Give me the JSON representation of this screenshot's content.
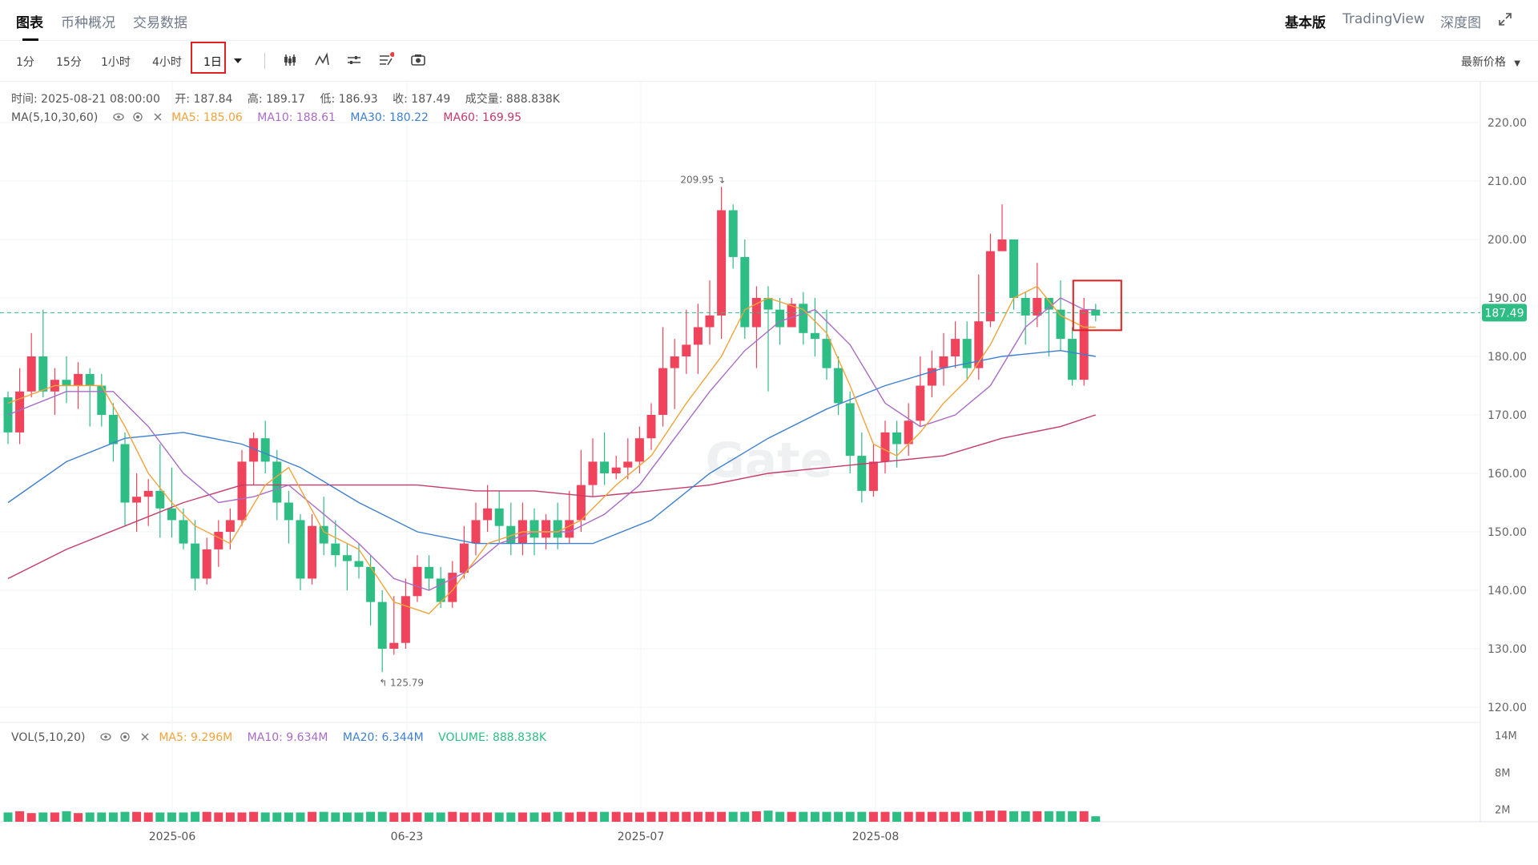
{
  "tabs": {
    "chart": "图表",
    "overview": "币种概况",
    "trading": "交易数据"
  },
  "right_tabs": {
    "basic": "基本版",
    "tradingview": "TradingView",
    "depth": "深度图"
  },
  "intervals": [
    "1分",
    "15分",
    "1小时",
    "4小时",
    "1日"
  ],
  "selected_interval": "1日",
  "price_mode": "最新价格",
  "info": {
    "time": "时间: 2025-08-21 08:00:00",
    "open": "开: 187.84",
    "high": "高: 189.17",
    "low": "低: 186.93",
    "close": "收: 187.49",
    "volume": "成交量: 888.838K"
  },
  "ma_legend": {
    "title": "MA(5,10,30,60)",
    "ma5": "MA5: 185.06",
    "ma10": "MA10: 188.61",
    "ma30": "MA30: 180.22",
    "ma60": "MA60: 169.95"
  },
  "vol_legend": {
    "title": "VOL(5,10,20)",
    "ma5": "MA5: 9.296M",
    "ma10": "MA10: 9.634M",
    "ma20": "MA20: 6.344M",
    "volume": "VOLUME: 888.838K"
  },
  "watermark": "Gate",
  "colors": {
    "up": "#f0435c",
    "down": "#2ebd85",
    "ma5": "#f2a33a",
    "ma10": "#a96cc6",
    "ma30": "#3d7fd1",
    "ma60": "#c73a6a",
    "last_price_bg": "#2ebd85"
  },
  "chart_data": {
    "type": "candlestick",
    "x_labels": [
      "2025-06",
      "06-23",
      "2025-07",
      "2025-08"
    ],
    "y_ticks": [
      "220.00",
      "210.00",
      "200.00",
      "190.00",
      "180.00",
      "170.00",
      "160.00",
      "150.00",
      "140.00",
      "130.00",
      "120.00"
    ],
    "ylim": [
      118,
      227
    ],
    "vol_ticks": [
      "14M",
      "8M",
      "2M"
    ],
    "last_price": "187.49",
    "high_mark": "209.95",
    "low_mark": "125.79",
    "candles": [
      [
        173,
        167,
        174,
        165
      ],
      [
        167,
        174,
        178,
        165
      ],
      [
        174,
        180,
        184,
        173
      ],
      [
        180,
        174,
        188,
        173
      ],
      [
        174,
        176,
        178,
        170
      ],
      [
        176,
        175,
        180,
        172
      ],
      [
        175,
        177,
        179,
        171
      ],
      [
        177,
        175,
        178,
        168
      ],
      [
        175,
        170,
        177,
        168
      ],
      [
        170,
        165,
        172,
        162
      ],
      [
        165,
        155,
        167,
        151
      ],
      [
        155,
        156,
        160,
        150
      ],
      [
        156,
        157,
        159,
        151
      ],
      [
        157,
        154,
        165,
        149
      ],
      [
        154,
        152,
        161,
        149
      ],
      [
        152,
        148,
        154,
        147
      ],
      [
        148,
        142,
        152,
        140
      ],
      [
        142,
        147,
        149,
        141
      ],
      [
        147,
        150,
        152,
        144
      ],
      [
        150,
        152,
        154,
        147
      ],
      [
        152,
        162,
        164,
        151
      ],
      [
        162,
        166,
        167,
        158
      ],
      [
        166,
        162,
        169,
        160
      ],
      [
        162,
        155,
        164,
        152
      ],
      [
        155,
        152,
        157,
        148
      ],
      [
        152,
        142,
        153,
        140
      ],
      [
        142,
        151,
        153,
        141
      ],
      [
        151,
        148,
        156,
        146
      ],
      [
        148,
        146,
        152,
        144
      ],
      [
        146,
        145,
        148,
        140
      ],
      [
        145,
        144,
        148,
        142
      ],
      [
        144,
        138,
        146,
        134
      ],
      [
        138,
        130,
        140,
        126
      ],
      [
        130,
        131,
        139,
        129
      ],
      [
        131,
        139,
        142,
        130
      ],
      [
        139,
        144,
        146,
        138
      ],
      [
        144,
        142,
        146,
        140
      ],
      [
        142,
        138,
        144,
        137
      ],
      [
        138,
        143,
        145,
        137
      ],
      [
        143,
        148,
        151,
        142
      ],
      [
        148,
        152,
        155,
        146
      ],
      [
        152,
        154,
        158,
        150
      ],
      [
        154,
        151,
        157,
        148
      ],
      [
        151,
        148,
        155,
        146
      ],
      [
        148,
        152,
        155,
        146
      ],
      [
        152,
        149,
        154,
        146
      ],
      [
        149,
        152,
        153,
        147
      ],
      [
        152,
        149,
        155,
        147
      ],
      [
        149,
        152,
        157,
        148
      ],
      [
        152,
        158,
        164,
        150
      ],
      [
        158,
        162,
        166,
        156
      ],
      [
        162,
        160,
        167,
        158
      ],
      [
        160,
        161,
        163,
        159
      ],
      [
        161,
        162,
        166,
        159
      ],
      [
        162,
        166,
        168,
        160
      ],
      [
        166,
        170,
        172,
        164
      ],
      [
        170,
        178,
        185,
        168
      ],
      [
        178,
        180,
        183,
        171
      ],
      [
        180,
        182,
        188,
        177
      ],
      [
        182,
        185,
        189,
        177
      ],
      [
        185,
        187,
        193,
        182
      ],
      [
        187,
        205,
        209,
        183
      ],
      [
        205,
        197,
        206,
        195
      ],
      [
        197,
        185,
        200,
        183
      ],
      [
        185,
        190,
        192,
        178
      ],
      [
        190,
        188,
        192,
        174
      ],
      [
        188,
        185,
        190,
        182
      ],
      [
        185,
        189,
        190,
        186
      ],
      [
        189,
        184,
        191,
        182
      ],
      [
        184,
        183,
        190,
        180
      ],
      [
        183,
        178,
        188,
        176
      ],
      [
        178,
        172,
        180,
        170
      ],
      [
        172,
        163,
        174,
        160
      ],
      [
        163,
        157,
        167,
        155
      ],
      [
        157,
        162,
        165,
        156
      ],
      [
        162,
        167,
        169,
        160
      ],
      [
        167,
        165,
        169,
        161
      ],
      [
        165,
        169,
        172,
        163
      ],
      [
        169,
        175,
        180,
        168
      ],
      [
        175,
        178,
        181,
        173
      ],
      [
        178,
        180,
        184,
        175
      ],
      [
        180,
        183,
        186,
        178
      ],
      [
        183,
        178,
        186,
        176
      ],
      [
        178,
        186,
        194,
        176
      ],
      [
        186,
        198,
        201,
        185
      ],
      [
        198,
        200,
        206,
        198
      ],
      [
        200,
        190,
        200,
        188
      ],
      [
        190,
        187,
        191,
        182
      ],
      [
        187,
        190,
        196,
        185
      ],
      [
        190,
        188,
        190,
        180
      ],
      [
        188,
        183,
        193,
        181
      ],
      [
        183,
        176,
        185,
        175
      ],
      [
        176,
        188,
        190,
        175
      ],
      [
        188,
        187,
        189,
        186
      ]
    ],
    "volumes": [
      1.5,
      1.7,
      1.4,
      1.5,
      1.5,
      1.7,
      1.4,
      1.5,
      1.5,
      1.5,
      1.6,
      1.6,
      1.5,
      1.5,
      1.5,
      1.5,
      1.6,
      1.6,
      1.5,
      1.5,
      1.5,
      1.6,
      1.5,
      1.5,
      1.5,
      1.5,
      1.6,
      1.6,
      1.5,
      1.5,
      1.5,
      1.6,
      1.6,
      1.5,
      1.5,
      1.5,
      1.5,
      1.5,
      1.6,
      1.5,
      1.5,
      1.5,
      1.5,
      1.5,
      1.5,
      1.5,
      1.5,
      1.6,
      1.5,
      1.6,
      1.6,
      1.6,
      1.6,
      1.5,
      1.5,
      1.6,
      1.6,
      1.6,
      1.6,
      1.6,
      1.6,
      1.6,
      1.6,
      1.6,
      1.7,
      1.8,
      1.6,
      1.6,
      1.6,
      1.6,
      1.6,
      1.6,
      1.6,
      1.6,
      1.6,
      1.6,
      1.6,
      1.6,
      1.6,
      1.6,
      1.6,
      1.6,
      1.6,
      1.7,
      1.8,
      1.8,
      1.7,
      1.7,
      1.7,
      1.7,
      1.7,
      1.7,
      1.7,
      0.89
    ],
    "ma5_line": [
      [
        0,
        172
      ],
      [
        4,
        175
      ],
      [
        8,
        175
      ],
      [
        10,
        168
      ],
      [
        12,
        160
      ],
      [
        14,
        155
      ],
      [
        16,
        151
      ],
      [
        19,
        148
      ],
      [
        22,
        158
      ],
      [
        24,
        161
      ],
      [
        27,
        150
      ],
      [
        30,
        147
      ],
      [
        33,
        138
      ],
      [
        36,
        136
      ],
      [
        38,
        140
      ],
      [
        41,
        148
      ],
      [
        44,
        150
      ],
      [
        47,
        150
      ],
      [
        49,
        152
      ],
      [
        52,
        158
      ],
      [
        55,
        163
      ],
      [
        58,
        172
      ],
      [
        61,
        180
      ],
      [
        63,
        188
      ],
      [
        65,
        190
      ],
      [
        68,
        188
      ],
      [
        70,
        184
      ],
      [
        72,
        175
      ],
      [
        74,
        165
      ],
      [
        76,
        163
      ],
      [
        78,
        167
      ],
      [
        80,
        172
      ],
      [
        82,
        176
      ],
      [
        84,
        182
      ],
      [
        86,
        190
      ],
      [
        88,
        192
      ],
      [
        90,
        187
      ],
      [
        92,
        185
      ],
      [
        93,
        185
      ]
    ],
    "ma10_line": [
      [
        0,
        170
      ],
      [
        5,
        174
      ],
      [
        9,
        174
      ],
      [
        12,
        168
      ],
      [
        15,
        160
      ],
      [
        18,
        155
      ],
      [
        21,
        156
      ],
      [
        24,
        158
      ],
      [
        27,
        153
      ],
      [
        30,
        148
      ],
      [
        33,
        142
      ],
      [
        36,
        140
      ],
      [
        39,
        143
      ],
      [
        42,
        148
      ],
      [
        45,
        150
      ],
      [
        48,
        150
      ],
      [
        51,
        153
      ],
      [
        54,
        158
      ],
      [
        57,
        166
      ],
      [
        60,
        174
      ],
      [
        63,
        181
      ],
      [
        66,
        186
      ],
      [
        69,
        188
      ],
      [
        72,
        182
      ],
      [
        75,
        172
      ],
      [
        78,
        168
      ],
      [
        81,
        170
      ],
      [
        84,
        175
      ],
      [
        87,
        185
      ],
      [
        90,
        190
      ],
      [
        92,
        188
      ],
      [
        93,
        188
      ]
    ],
    "ma30_line": [
      [
        0,
        155
      ],
      [
        5,
        162
      ],
      [
        10,
        166
      ],
      [
        15,
        167
      ],
      [
        20,
        165
      ],
      [
        25,
        161
      ],
      [
        30,
        155
      ],
      [
        35,
        150
      ],
      [
        40,
        148
      ],
      [
        45,
        148
      ],
      [
        50,
        148
      ],
      [
        55,
        152
      ],
      [
        60,
        160
      ],
      [
        65,
        166
      ],
      [
        70,
        171
      ],
      [
        75,
        175
      ],
      [
        80,
        178
      ],
      [
        85,
        180
      ],
      [
        90,
        181
      ],
      [
        93,
        180
      ]
    ],
    "ma60_line": [
      [
        0,
        142
      ],
      [
        5,
        147
      ],
      [
        10,
        151
      ],
      [
        15,
        155
      ],
      [
        20,
        158
      ],
      [
        25,
        158
      ],
      [
        30,
        158
      ],
      [
        35,
        158
      ],
      [
        40,
        157
      ],
      [
        45,
        157
      ],
      [
        50,
        156
      ],
      [
        55,
        157
      ],
      [
        60,
        158
      ],
      [
        65,
        160
      ],
      [
        70,
        161
      ],
      [
        75,
        162
      ],
      [
        80,
        163
      ],
      [
        85,
        166
      ],
      [
        90,
        168
      ],
      [
        93,
        170
      ]
    ]
  }
}
